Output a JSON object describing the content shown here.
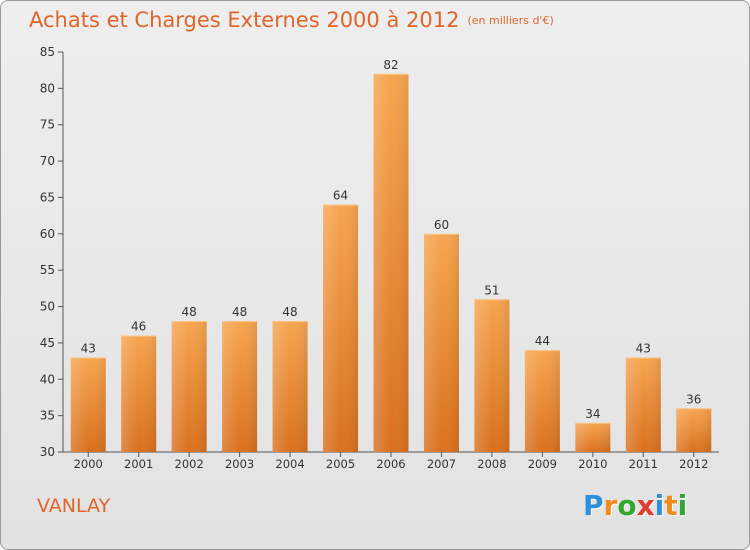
{
  "title": "Achats et Charges Externes 2000 à 2012",
  "unit": "(en milliers d'€)",
  "commune": "VANLAY",
  "logo": {
    "letters": [
      "P",
      "r",
      "o",
      "x",
      "i",
      "t",
      "i"
    ],
    "colors": [
      "#2f8fd8",
      "#f28b1f",
      "#33a532",
      "#e23b30",
      "#2f8fd8",
      "#f28b1f",
      "#33a532"
    ]
  },
  "colors": {
    "bar_light": "#f6a54f",
    "bar_dark": "#d9701e",
    "title": "#e0652a",
    "axis": "#555555"
  },
  "chart_data": {
    "type": "bar",
    "categories": [
      "2000",
      "2001",
      "2002",
      "2003",
      "2004",
      "2005",
      "2006",
      "2007",
      "2008",
      "2009",
      "2010",
      "2011",
      "2012"
    ],
    "values": [
      43,
      46,
      48,
      48,
      48,
      64,
      82,
      60,
      51,
      44,
      34,
      43,
      36
    ],
    "ylim": [
      30,
      85
    ],
    "yticks": [
      30,
      35,
      40,
      45,
      50,
      55,
      60,
      65,
      70,
      75,
      80,
      85
    ],
    "grid": false,
    "title": "Achats et Charges Externes 2000 à 2012",
    "xlabel": "",
    "ylabel": ""
  }
}
